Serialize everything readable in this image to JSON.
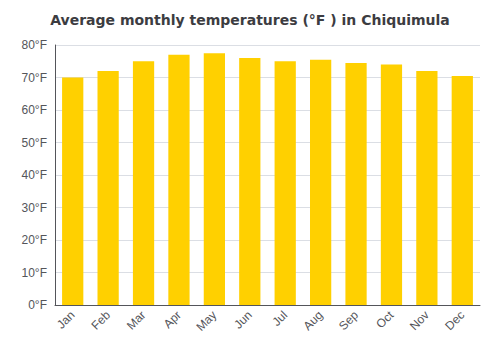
{
  "chart_data": {
    "type": "bar",
    "title": "Average monthly temperatures (°F ) in Chiquimula",
    "categories": [
      "Jan",
      "Feb",
      "Mar",
      "Apr",
      "May",
      "Jun",
      "Jul",
      "Aug",
      "Sep",
      "Oct",
      "Nov",
      "Dec"
    ],
    "values": [
      70.0,
      72.0,
      75.0,
      77.0,
      77.5,
      76.0,
      75.0,
      75.5,
      74.5,
      74.0,
      72.0,
      70.5
    ],
    "color": "#FFD000",
    "ylim": [
      0,
      80
    ],
    "yticks": [
      {
        "value": 0,
        "label": "0°F"
      },
      {
        "value": 10,
        "label": "10°F"
      },
      {
        "value": 20,
        "label": "20°F"
      },
      {
        "value": 30,
        "label": "30°F"
      },
      {
        "value": 40,
        "label": "40°F"
      },
      {
        "value": 50,
        "label": "50°F"
      },
      {
        "value": 60,
        "label": "60°F"
      },
      {
        "value": 70,
        "label": "70°F"
      },
      {
        "value": 80,
        "label": "80°F"
      }
    ],
    "grid": true
  }
}
